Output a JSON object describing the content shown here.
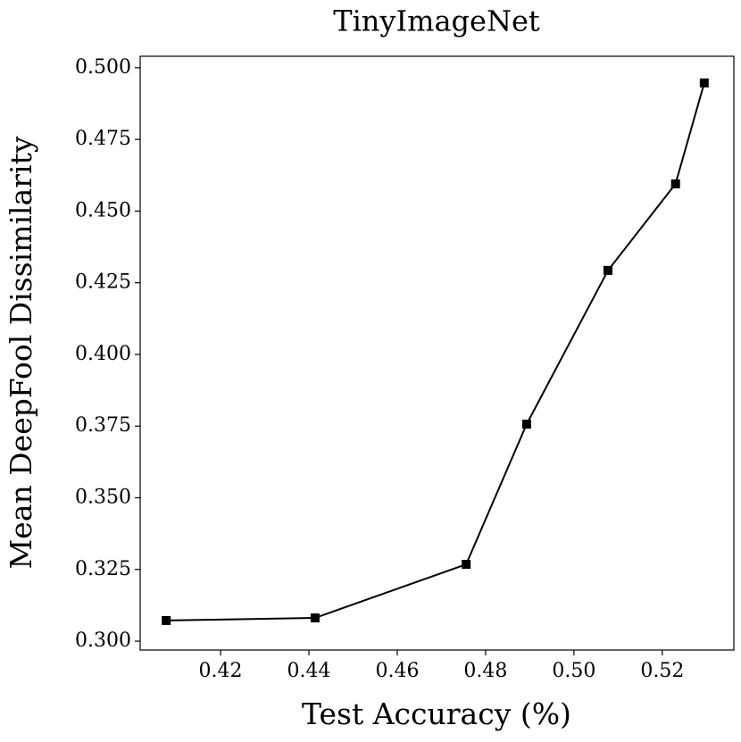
{
  "chart_data": {
    "type": "line",
    "title": "TinyImageNet",
    "x_label": "Test Accuracy (%)",
    "y_label": "Mean DeepFool Dissimilarity",
    "x": [
      0.4077,
      0.4414,
      0.4756,
      0.4893,
      0.5077,
      0.523,
      0.5295
    ],
    "series": [
      {
        "name": "",
        "color": "#000000",
        "values": [
          0.3072,
          0.3081,
          0.3268,
          0.3757,
          0.4293,
          0.4595,
          0.4947
        ]
      }
    ],
    "xlim": [
      0.4018,
      0.5362
    ],
    "ylim": [
      0.2969,
      0.504
    ],
    "xticks": [
      0.42,
      0.44,
      0.46,
      0.48,
      {
        "value": 0.5,
        "label": "0.50"
      },
      0.52
    ],
    "yticks": [
      {
        "value": 0.3,
        "label": "0.300"
      },
      {
        "value": 0.325,
        "label": "0.325"
      },
      {
        "value": 0.35,
        "label": "0.350"
      },
      {
        "value": 0.375,
        "label": "0.375"
      },
      {
        "value": 0.4,
        "label": "0.400"
      },
      {
        "value": 0.425,
        "label": "0.425"
      },
      {
        "value": 0.45,
        "label": "0.450"
      },
      {
        "value": 0.475,
        "label": "0.475"
      },
      {
        "value": 0.5,
        "label": "0.500"
      }
    ],
    "marker": "square",
    "grid": false
  }
}
